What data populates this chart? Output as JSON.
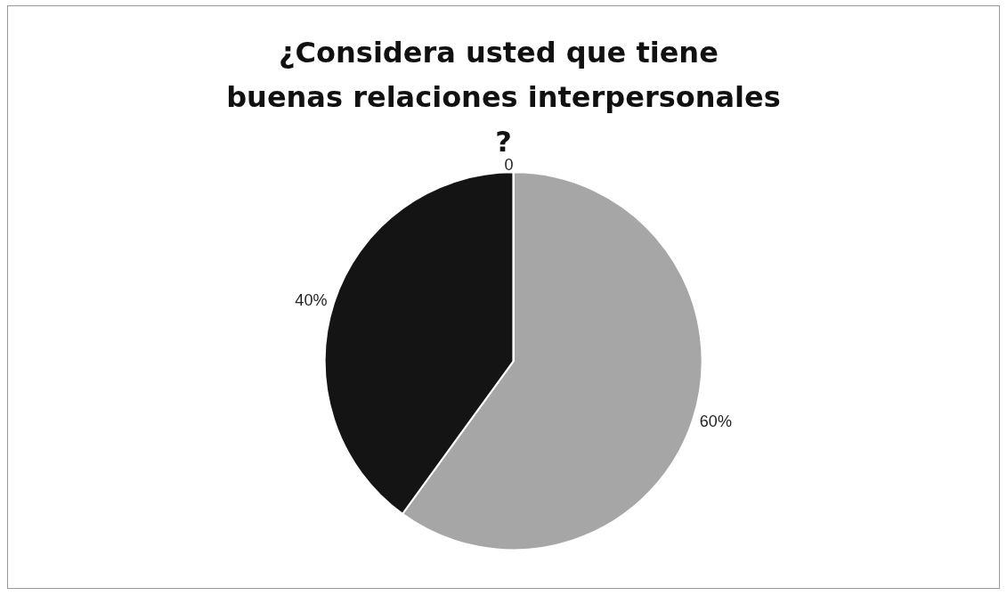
{
  "chart_data": {
    "type": "pie",
    "title": "¿Considera usted que tiene buenas relaciones interpersonales?",
    "categories": [
      null,
      null,
      null
    ],
    "values": [
      60,
      40,
      0
    ],
    "value_labels": [
      "60%",
      "40%",
      "0"
    ],
    "colors": [
      "#a6a6a6",
      "#141414",
      "#d9d9d9"
    ]
  }
}
